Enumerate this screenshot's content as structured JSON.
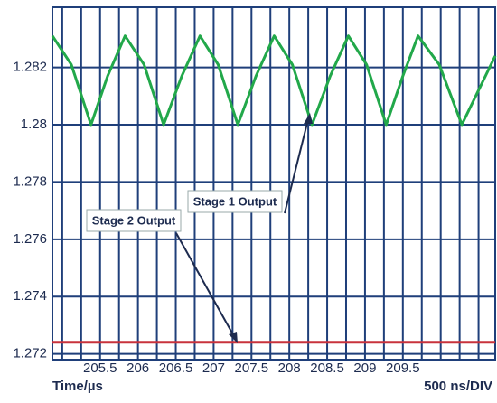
{
  "chart_data": {
    "type": "line",
    "xlabel": "Time/µs",
    "scale_note": "500 ns/DIV",
    "xlim": [
      204.87,
      210.72
    ],
    "ylim": [
      1.2718,
      1.2841
    ],
    "xticks": [
      205.5,
      206,
      206.5,
      207,
      207.5,
      208,
      208.5,
      209,
      209.5
    ],
    "xgrid": [
      205.0,
      205.25,
      205.5,
      205.75,
      206,
      206.25,
      206.5,
      206.75,
      207,
      207.25,
      207.5,
      207.75,
      208,
      208.25,
      208.5,
      208.75,
      209,
      209.25,
      209.5,
      209.75,
      210,
      210.25,
      210.5
    ],
    "yticks": [
      1.282,
      1.28,
      1.278,
      1.276,
      1.274,
      1.272
    ],
    "grid": true,
    "grid_color": "#1f3f7a",
    "series": [
      {
        "name": "Stage 1 Output",
        "color": "#22a84a",
        "x": [
          204.87,
          205.12,
          205.38,
          205.6,
          205.83,
          206.08,
          206.34,
          206.58,
          206.82,
          207.06,
          207.32,
          207.56,
          207.8,
          208.04,
          208.3,
          208.54,
          208.78,
          209.02,
          209.28,
          209.5,
          209.7,
          209.98,
          210.28,
          210.72
        ],
        "values": [
          1.2831,
          1.2821,
          1.28,
          1.2817,
          1.2831,
          1.2821,
          1.28,
          1.2817,
          1.2831,
          1.2821,
          1.28,
          1.2817,
          1.2831,
          1.2821,
          1.28,
          1.2817,
          1.2831,
          1.2821,
          1.28,
          1.2817,
          1.2831,
          1.2821,
          1.28,
          1.2824
        ]
      },
      {
        "name": "Stage 2 Output",
        "color": "#c8323c",
        "x": [
          204.87,
          210.72
        ],
        "values": [
          1.27241,
          1.27241
        ]
      }
    ]
  }
}
